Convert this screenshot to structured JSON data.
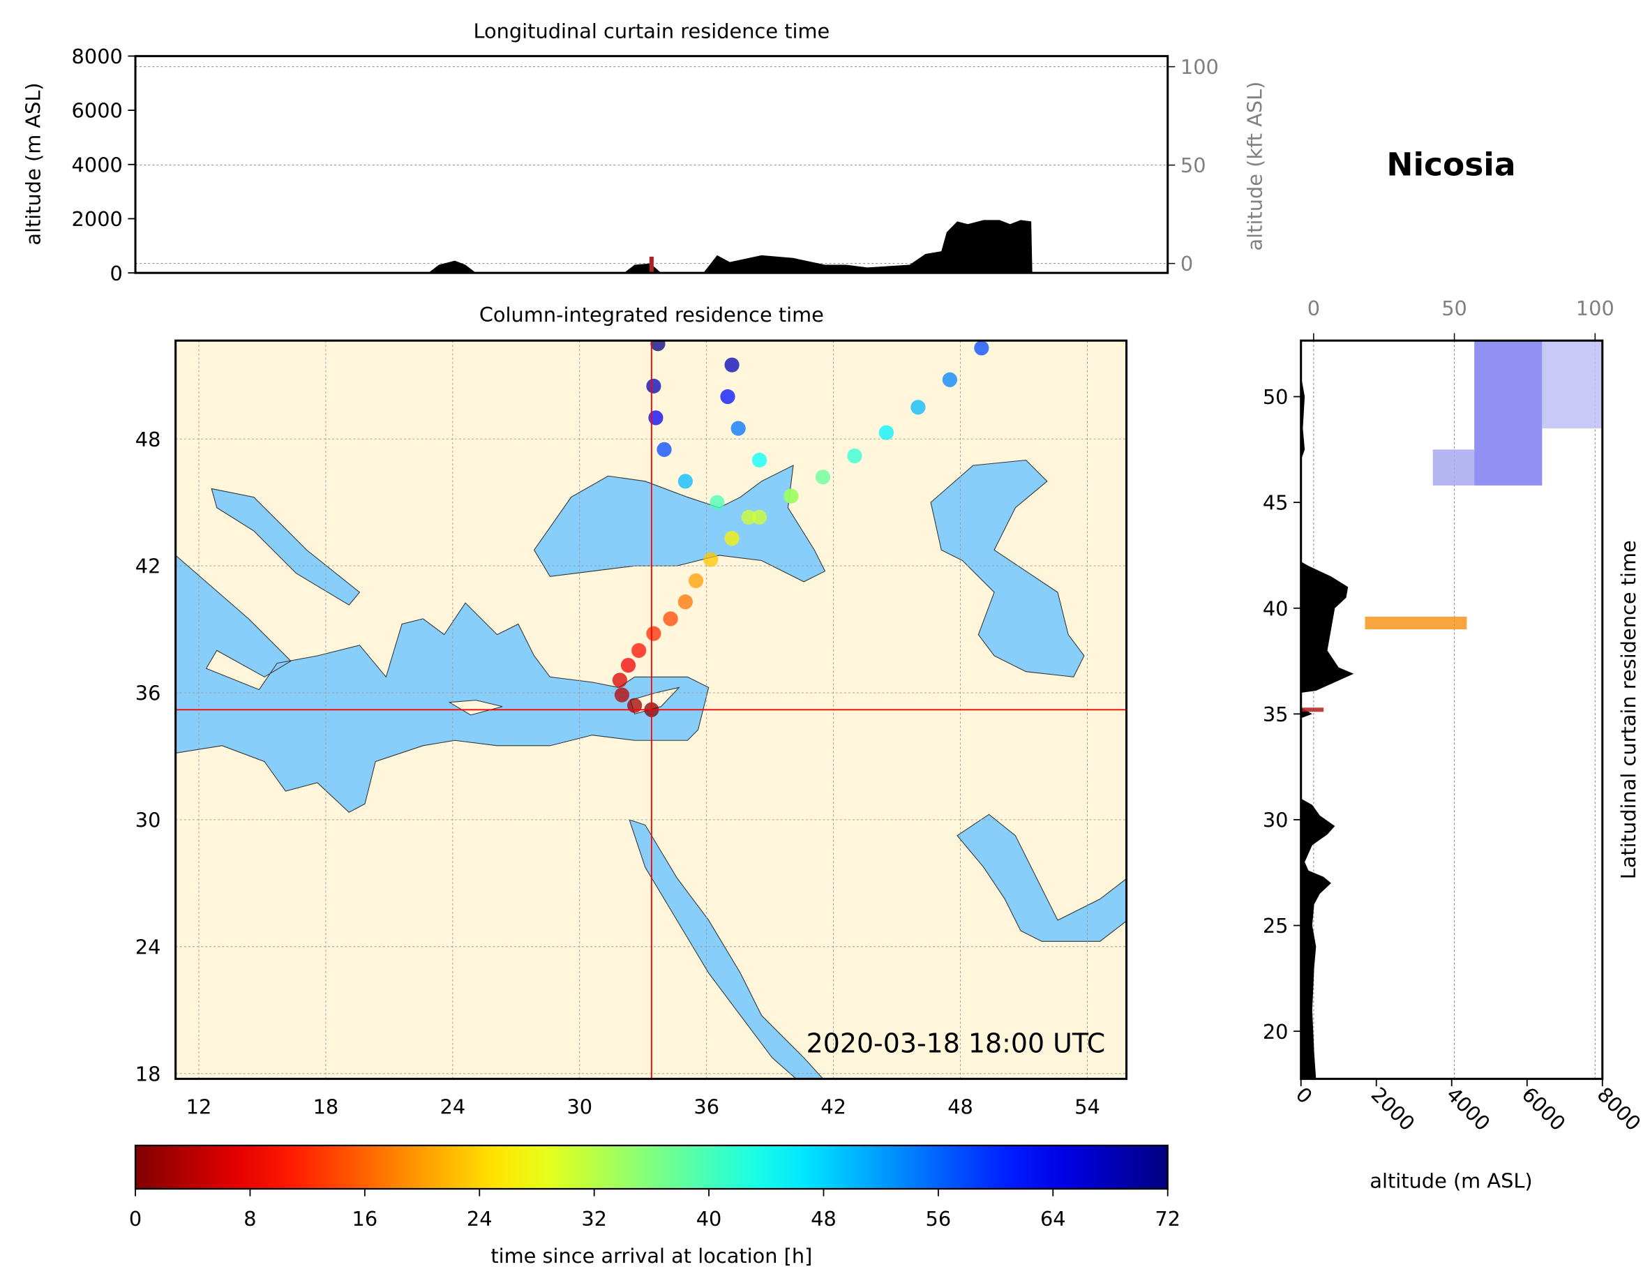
{
  "title": "Nicosia",
  "chart_data": [
    {
      "type": "area",
      "title": "Longitudinal curtain residence time",
      "ylabel": "altitude (m ASL)",
      "y2label": "altitude (kft ASL)",
      "xlim": [
        9,
        57.8
      ],
      "ylim": [
        0,
        8000
      ],
      "yticks": [
        0,
        2000,
        4000,
        6000,
        8000
      ],
      "y2lim": [
        -4.8,
        105.4
      ],
      "y2ticks": [
        0,
        50,
        100
      ],
      "grid": true,
      "color": "#000000",
      "x": [
        9,
        22.85,
        23.35,
        23.85,
        24.1,
        24.6,
        25.1,
        32.1,
        32.6,
        33.35,
        33.85,
        35.85,
        36.5,
        37.1,
        38.6,
        40.1,
        41.6,
        42.6,
        43.6,
        45.6,
        46.35,
        47.1,
        47.35,
        47.85,
        48.35,
        49.1,
        49.85,
        50.35,
        50.85,
        51.35,
        51.4
      ],
      "values": [
        0,
        0,
        300,
        400,
        450,
        300,
        0,
        0,
        300,
        350,
        0,
        0,
        650,
        400,
        650,
        550,
        300,
        300,
        200,
        300,
        700,
        800,
        1500,
        1900,
        1800,
        1950,
        1950,
        1800,
        1950,
        1900,
        0
      ],
      "residence": [
        {
          "x": [
            33.3,
            33.5
          ],
          "y": [
            0,
            600
          ],
          "color": "#b22222"
        }
      ]
    },
    {
      "type": "map",
      "title": "Column-integrated residence time",
      "annotation": "2020-03-18 18:00 UTC",
      "xlim": [
        10.9,
        55.85
      ],
      "ylim": [
        17.75,
        52.65
      ],
      "xticks": [
        12,
        18,
        24,
        30,
        36,
        42,
        48,
        54
      ],
      "yticks": [
        18,
        24,
        30,
        36,
        42,
        48
      ],
      "grid": true,
      "colormap": "jet_r",
      "clim": [
        0,
        72
      ],
      "station": {
        "lon": 33.4,
        "lat": 35.2,
        "color": "#ff0000"
      },
      "trajectories": [
        {
          "x": [
            33.4,
            32.6,
            32.0,
            31.9,
            32.3,
            32.8,
            33.5,
            34.3,
            35.0,
            35.5,
            36.2,
            37.2,
            38.5,
            40.0,
            41.5,
            43.0,
            44.5,
            46.0,
            47.5,
            49.0
          ],
          "y": [
            35.2,
            35.4,
            35.9,
            36.6,
            37.3,
            38.0,
            38.8,
            39.5,
            40.3,
            41.3,
            42.3,
            43.3,
            44.3,
            45.3,
            46.2,
            47.2,
            48.3,
            49.5,
            50.8,
            52.3
          ],
          "time": [
            0,
            2,
            4,
            6,
            8,
            10,
            12,
            14,
            17,
            20,
            23,
            26,
            30,
            34,
            38,
            42,
            46,
            50,
            54,
            58
          ]
        },
        {
          "x": [
            38.0,
            36.5,
            35.0,
            34.0,
            33.6,
            33.5,
            33.7
          ],
          "y": [
            44.3,
            45.0,
            46.0,
            47.5,
            49.0,
            50.5,
            52.5
          ],
          "time": [
            30,
            40,
            50,
            58,
            64,
            68,
            72
          ]
        },
        {
          "x": [
            40.0,
            38.5,
            37.5,
            37.0,
            37.2
          ],
          "y": [
            45.3,
            47.0,
            48.5,
            50.0,
            51.5
          ],
          "time": [
            34,
            45,
            55,
            62,
            68
          ]
        }
      ]
    },
    {
      "type": "area_h",
      "title": "Latitudinal curtain residence time",
      "xlabel": "altitude (m ASL)",
      "xlim": [
        0,
        8000
      ],
      "xticks": [
        0,
        2000,
        4000,
        6000,
        8000
      ],
      "x2lim": [
        -4.5,
        102.6
      ],
      "x2ticks": [
        0,
        50,
        100
      ],
      "ylim": [
        17.75,
        52.65
      ],
      "yticks": [
        20,
        25,
        30,
        35,
        40,
        45,
        50
      ],
      "grid": true,
      "color": "#000000",
      "y": [
        17.75,
        19,
        21,
        23,
        24,
        25,
        26,
        26.5,
        27,
        27.3,
        27.6,
        28,
        28.8,
        29.3,
        29.7,
        30.2,
        30.7,
        31,
        34.8,
        35,
        35.3,
        36,
        36.1,
        36.9,
        37.2,
        38,
        39,
        40,
        40.5,
        41,
        41.5,
        42,
        42.2,
        47,
        47.5,
        48.5,
        50,
        51,
        52.65
      ],
      "values": [
        400,
        350,
        300,
        350,
        400,
        300,
        350,
        500,
        800,
        600,
        200,
        100,
        300,
        700,
        900,
        500,
        300,
        0,
        0,
        300,
        0,
        0,
        400,
        1400,
        1000,
        700,
        800,
        900,
        1200,
        1250,
        800,
        200,
        0,
        0,
        100,
        50,
        100,
        0,
        0
      ],
      "residence": [
        {
          "y": [
            35.1,
            35.3
          ],
          "x": [
            0,
            600
          ],
          "color": "#b22222"
        },
        {
          "y": [
            39.0,
            39.6
          ],
          "x": [
            1700,
            4400
          ],
          "color": "#f7941d"
        },
        {
          "y": [
            45.8,
            47.5
          ],
          "x": [
            3500,
            4600
          ],
          "color": "#a8a8f0"
        },
        {
          "y": [
            45.8,
            52.65
          ],
          "x": [
            4600,
            6400
          ],
          "color": "#7e7ef2"
        },
        {
          "y": [
            48.5,
            52.65
          ],
          "x": [
            6400,
            8000
          ],
          "color": "#c0c0f6"
        }
      ]
    },
    {
      "type": "colorbar",
      "xlabel": "time since arrival at location [h]",
      "colormap": "jet_r",
      "xlim": [
        0,
        72
      ],
      "xticks": [
        0,
        8,
        16,
        24,
        32,
        40,
        48,
        56,
        64,
        72
      ]
    }
  ]
}
